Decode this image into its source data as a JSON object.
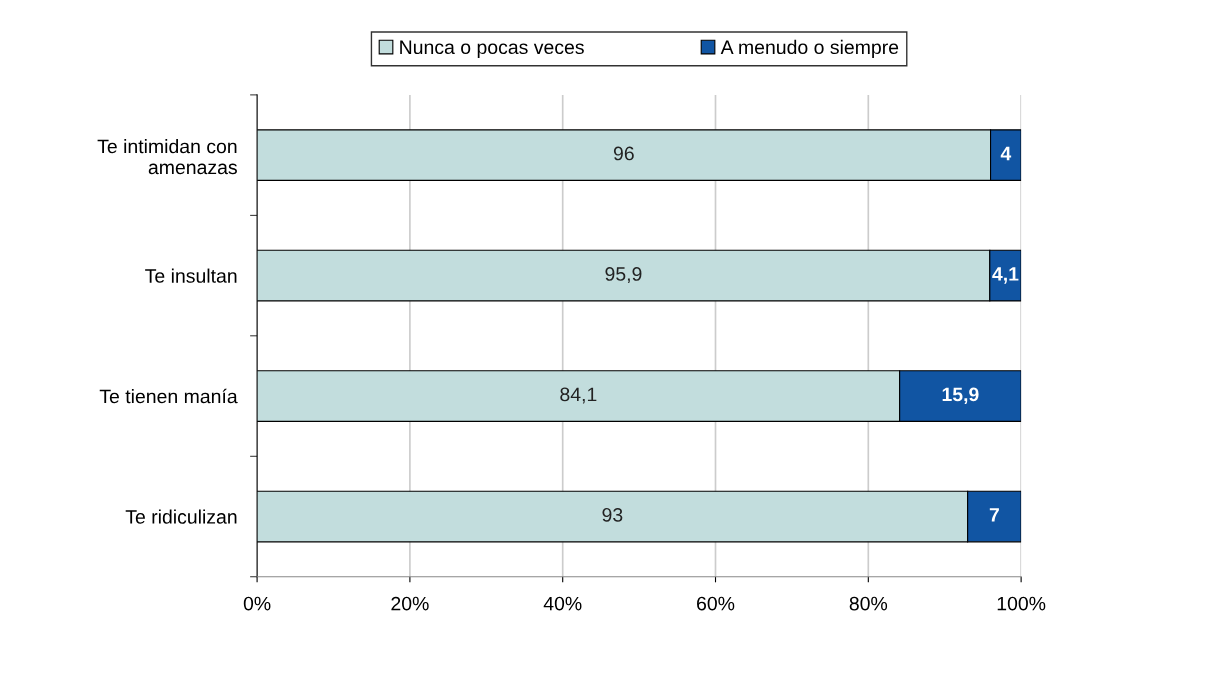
{
  "chart_data": {
    "type": "bar",
    "orientation": "horizontal",
    "stacked": true,
    "categories": [
      "Te intimidan con amenazas",
      "Te insultan",
      "Te tienen manía",
      "Te ridiculizan"
    ],
    "series": [
      {
        "name": "Nunca o pocas veces",
        "color": "#c2dddd",
        "values": [
          96,
          95.9,
          84.1,
          93
        ],
        "value_labels": [
          "96",
          "95,9",
          "84,1",
          "93"
        ]
      },
      {
        "name": "A menudo o siempre",
        "color": "#1155a3",
        "values": [
          4,
          4.1,
          15.9,
          7
        ],
        "value_labels": [
          "4",
          "4,1",
          "15,9",
          "7"
        ]
      }
    ],
    "xlim": [
      0,
      100
    ],
    "xticks": [
      {
        "value": 0,
        "label": "0%"
      },
      {
        "value": 20,
        "label": "20%"
      },
      {
        "value": 40,
        "label": "40%"
      },
      {
        "value": 60,
        "label": "60%"
      },
      {
        "value": 80,
        "label": "80%"
      },
      {
        "value": 100,
        "label": "100%"
      }
    ],
    "grid": "x",
    "legend": "top"
  }
}
